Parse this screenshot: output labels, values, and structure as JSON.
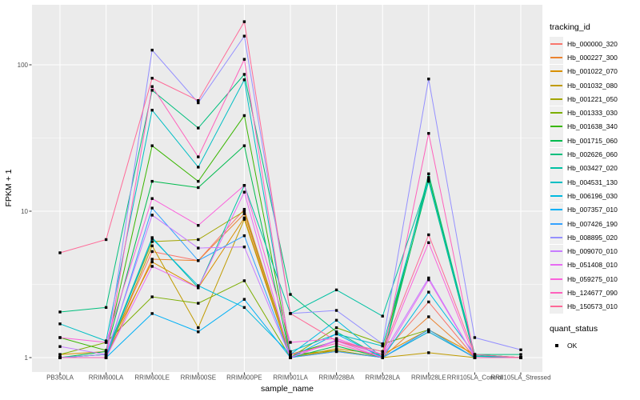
{
  "chart_data": {
    "type": "line",
    "title": "",
    "xlabel": "sample_name",
    "ylabel": "FPKM + 1",
    "yscale": "log10",
    "ylim": [
      1,
      220
    ],
    "yticks": [
      1,
      10,
      100
    ],
    "grid": "on",
    "legend_position": "right",
    "point_shape": "filled-square",
    "point_color": "#000000",
    "panel_bg": "#ebebeb",
    "grid_color": "#ffffff",
    "categories": [
      "PB350LA",
      "RRIM600LA",
      "RRIM600LE",
      "RRIM600SE",
      "RRIM600PE",
      "RRIM901LA",
      "RRIM928BA",
      "RRIM928LA",
      "RRIM928LE",
      "RRII105LA_Control",
      "RRII105LA_Stressed"
    ],
    "legend": {
      "series_title": "tracking_id",
      "shape_title": "quant_status",
      "shape_label": "OK"
    },
    "series": [
      {
        "name": "Hb_000000_320",
        "color": "#F8766D",
        "values": [
          1.0,
          1.05,
          5.3,
          4.6,
          10.3,
          1.05,
          1.3,
          1.05,
          2.4,
          1.0,
          1.0
        ]
      },
      {
        "name": "Hb_000227_300",
        "color": "#EA8331",
        "values": [
          1.0,
          1.0,
          4.7,
          4.6,
          9.6,
          1.0,
          1.1,
          1.0,
          1.9,
          1.0,
          1.0
        ]
      },
      {
        "name": "Hb_001022_070",
        "color": "#D89000",
        "values": [
          1.05,
          1.1,
          4.5,
          3.0,
          9.0,
          1.0,
          1.15,
          1.05,
          1.55,
          1.05,
          1.0
        ]
      },
      {
        "name": "Hb_001032_080",
        "color": "#C09B00",
        "values": [
          1.0,
          1.0,
          5.8,
          1.6,
          8.8,
          1.0,
          1.12,
          1.0,
          1.08,
          1.0,
          1.0
        ]
      },
      {
        "name": "Hb_001221_050",
        "color": "#A3A500",
        "values": [
          1.0,
          1.05,
          6.2,
          6.4,
          10.0,
          1.05,
          1.12,
          1.0,
          1.5,
          1.0,
          1.0
        ]
      },
      {
        "name": "Hb_001333_030",
        "color": "#7CAE00",
        "values": [
          1.05,
          1.27,
          2.6,
          2.35,
          3.35,
          1.0,
          1.6,
          1.24,
          1.55,
          1.0,
          1.0
        ]
      },
      {
        "name": "Hb_001638_340",
        "color": "#39B600",
        "values": [
          1.37,
          1.12,
          28,
          16,
          45,
          1.05,
          1.3,
          1.1,
          17,
          1.05,
          1.0
        ]
      },
      {
        "name": "Hb_001715_060",
        "color": "#00BB4E",
        "values": [
          1.0,
          1.1,
          16,
          14.5,
          28,
          1.0,
          1.2,
          1.0,
          16,
          1.0,
          1.0
        ]
      },
      {
        "name": "Hb_002626_060",
        "color": "#00BF7D",
        "values": [
          2.05,
          2.2,
          67,
          37,
          86,
          2.7,
          1.5,
          1.0,
          18,
          1.05,
          1.05
        ]
      },
      {
        "name": "Hb_003427_020",
        "color": "#00C1A3",
        "values": [
          1.0,
          1.05,
          6.6,
          3.0,
          15,
          2.0,
          2.9,
          1.92,
          16.5,
          1.02,
          1.0
        ]
      },
      {
        "name": "Hb_004531_130",
        "color": "#00BFC4",
        "values": [
          1.7,
          1.3,
          49,
          20,
          79,
          1.1,
          1.45,
          1.2,
          16.2,
          1.03,
          1.0
        ]
      },
      {
        "name": "Hb_006196_030",
        "color": "#00BAE0",
        "values": [
          1.0,
          1.0,
          6.5,
          3.1,
          2.2,
          1.05,
          1.8,
          1.0,
          2.8,
          1.05,
          1.0
        ]
      },
      {
        "name": "Hb_007357_010",
        "color": "#00B0F6",
        "values": [
          1.0,
          1.0,
          2.0,
          1.5,
          2.5,
          1.0,
          1.45,
          1.0,
          1.5,
          1.0,
          1.0
        ]
      },
      {
        "name": "Hb_007426_190",
        "color": "#35A2FF",
        "values": [
          1.0,
          1.0,
          10.5,
          4.6,
          6.8,
          1.0,
          1.1,
          1.0,
          1.55,
          1.0,
          1.0
        ]
      },
      {
        "name": "Hb_008895_020",
        "color": "#9590FF",
        "values": [
          1.0,
          1.05,
          126,
          55,
          157,
          2.0,
          2.1,
          1.24,
          80,
          1.37,
          1.13
        ]
      },
      {
        "name": "Hb_009070_010",
        "color": "#C77CFF",
        "values": [
          1.19,
          1.05,
          9.4,
          5.6,
          5.7,
          1.0,
          1.32,
          1.05,
          3.5,
          1.0,
          1.0
        ]
      },
      {
        "name": "Hb_051408_010",
        "color": "#E76BF3",
        "values": [
          1.0,
          1.0,
          4.2,
          3.0,
          13.5,
          1.0,
          1.3,
          1.0,
          3.4,
          1.0,
          1.0
        ]
      },
      {
        "name": "Hb_059275_010",
        "color": "#FA62DB",
        "values": [
          1.37,
          1.27,
          12.2,
          8.0,
          15.0,
          1.27,
          1.35,
          1.05,
          6.1,
          1.0,
          1.0
        ]
      },
      {
        "name": "Hb_124677_090",
        "color": "#FF62BC",
        "values": [
          1.0,
          1.0,
          71,
          23.5,
          109,
          1.05,
          1.25,
          1.0,
          34,
          1.0,
          1.0
        ]
      },
      {
        "name": "Hb_150573_010",
        "color": "#FF6A98",
        "values": [
          5.2,
          6.4,
          81,
          57,
          197,
          2.0,
          1.3,
          1.1,
          6.9,
          1.05,
          1.0
        ]
      }
    ]
  }
}
